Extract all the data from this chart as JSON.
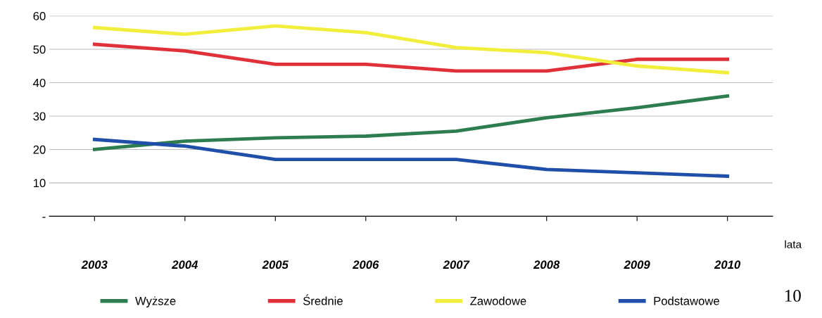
{
  "chart_data": {
    "type": "line",
    "xlabel": "lata",
    "categories": [
      "2003",
      "2004",
      "2005",
      "2006",
      "2007",
      "2008",
      "2009",
      "2010"
    ],
    "series": [
      {
        "name": "Wyższe",
        "color": "#2e7d4f",
        "values": [
          20,
          22.5,
          23.5,
          24,
          25.5,
          29.5,
          32.5,
          36
        ]
      },
      {
        "name": "Średnie",
        "color": "#e0303a",
        "values": [
          51.5,
          49.5,
          45.5,
          45.5,
          43.5,
          43.5,
          47,
          47
        ]
      },
      {
        "name": "Zawodowe",
        "color": "#f2ee3c",
        "values": [
          56.5,
          54.5,
          57,
          55,
          50.5,
          49,
          45,
          43
        ]
      },
      {
        "name": "Podstawowe",
        "color": "#1f4fa8",
        "values": [
          23,
          21,
          17,
          17,
          17,
          14,
          13,
          12
        ]
      }
    ],
    "ylim": [
      0,
      60
    ],
    "yticks": [
      {
        "value": 0,
        "label": "-"
      },
      10,
      20,
      30,
      40,
      50,
      60
    ],
    "grid": "y",
    "legend": "bottom",
    "marker": "none",
    "line_style": "solid",
    "annotations": [
      "10"
    ]
  }
}
